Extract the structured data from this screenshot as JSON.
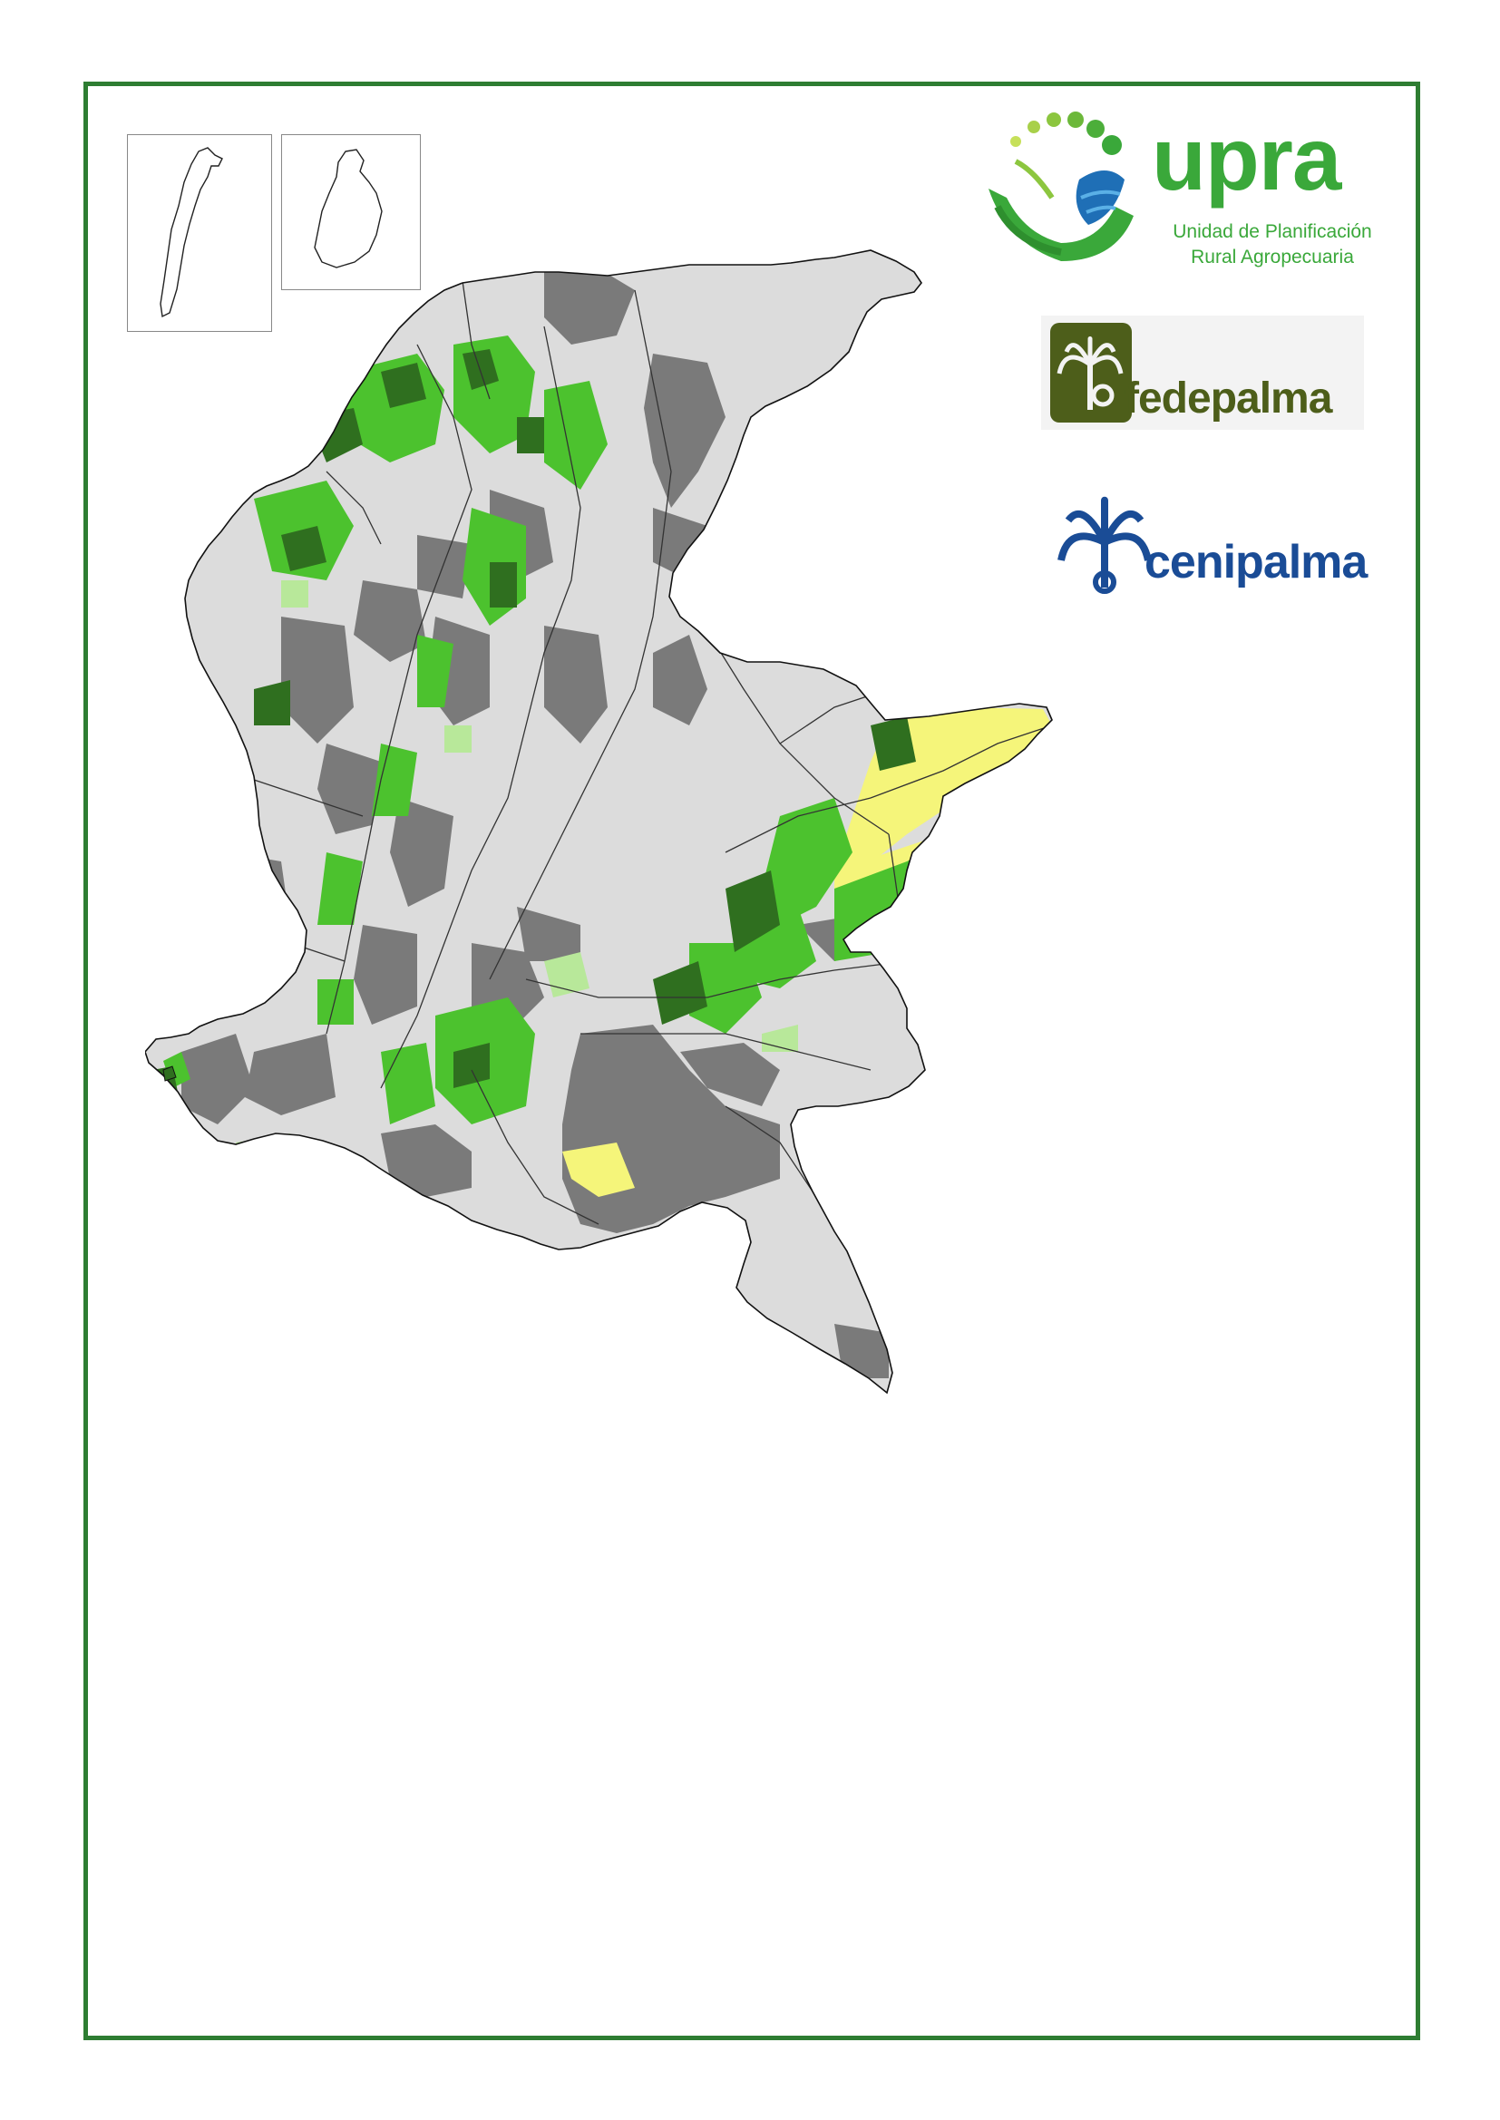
{
  "logos": {
    "upra": {
      "wordmark": "upra",
      "line1": "Unidad de Planificación",
      "line2": "Rural Agropecuaria"
    },
    "fedepalma": {
      "wordmark": "fedepalma"
    },
    "cenipalma": {
      "wordmark": "cenipalma"
    }
  },
  "colors": {
    "frame": "#2e7d32",
    "land_light": "#dcdcdc",
    "land_dark": "#7a7a7a",
    "aptitude_high": "#2f6f1f",
    "aptitude_medium": "#4cc22e",
    "aptitude_low": "#b8e89a",
    "aptitude_yellow": "#f5f57a",
    "upra_green": "#3aa83a",
    "fedepalma_olive": "#4d5e1a",
    "cenipalma_blue": "#1a4c96"
  }
}
